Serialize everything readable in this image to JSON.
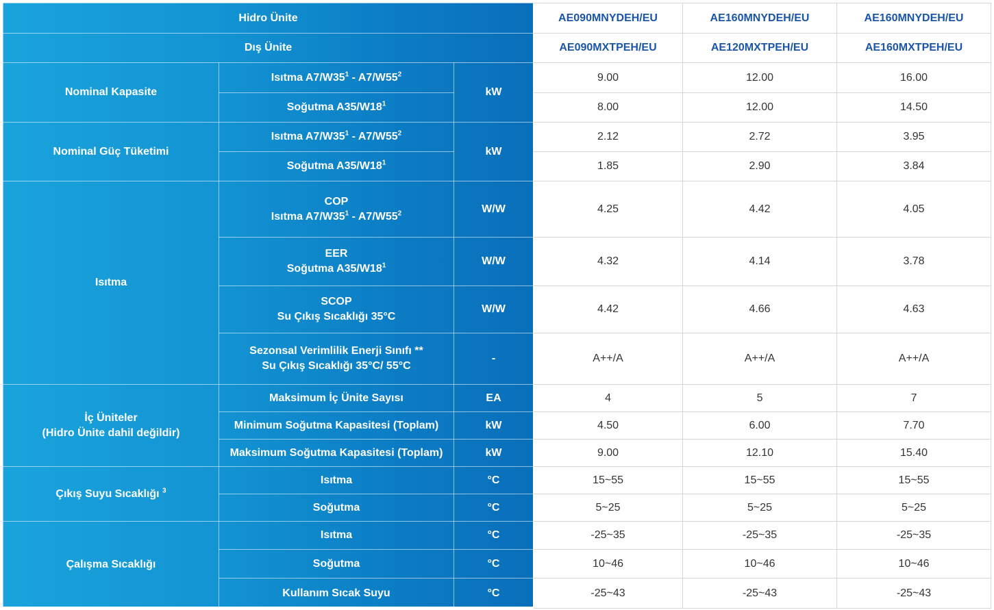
{
  "header": {
    "hydro_label": "Hidro Ünite",
    "outdoor_label": "Dış Ünite",
    "hydro_models": [
      "AE090MNYDEH/EU",
      "AE160MNYDEH/EU",
      "AE160MNYDEH/EU"
    ],
    "outdoor_models": [
      "AE090MXTPEH/EU",
      "AE120MXTPEH/EU",
      "AE160MXTPEH/EU"
    ]
  },
  "groups": {
    "nominal_capacity": "Nominal Kapasite",
    "nominal_power": "Nominal Güç Tüketimi",
    "heating": "Isıtma",
    "indoor_units": {
      "line1": "İç Üniteler",
      "line2": "(Hidro Ünite dahil değildir)"
    },
    "outlet_water": "Çıkış Suyu Sıcaklığı",
    "outlet_water_sup": "3",
    "operating_temp": "Çalışma Sıcaklığı"
  },
  "labels": {
    "heat_a": "Isıtma A7/W35",
    "heat_sup1": "1",
    "heat_b": " - A7/W55",
    "heat_sup2": "2",
    "cool_a": "Soğutma A35/W18",
    "cool_sup1": "1",
    "cop": "COP",
    "eer": "EER",
    "scop": "SCOP",
    "water_out_35": "Su Çıkış Sıcaklığı 35°C",
    "seasonal": "Sezonsal Verimlilik Enerji Sınıfı **",
    "water_out_35_55": "Su Çıkış Sıcaklığı 35°C/ 55°C",
    "max_indoor": "Maksimum İç Ünite Sayısı",
    "min_cool_cap": "Minimum Soğutma Kapasitesi (Toplam)",
    "max_cool_cap": "Maksimum Soğutma Kapasitesi (Toplam)",
    "heating": "Isıtma",
    "cooling": "Soğutma",
    "dhw": "Kullanım Sıcak Suyu"
  },
  "units": {
    "kw": "kW",
    "ww": "W/W",
    "dash": "-",
    "ea": "EA",
    "c": "°C"
  },
  "values": {
    "cap_heat": [
      "9.00",
      "12.00",
      "16.00"
    ],
    "cap_cool": [
      "8.00",
      "12.00",
      "14.50"
    ],
    "pow_heat": [
      "2.12",
      "2.72",
      "3.95"
    ],
    "pow_cool": [
      "1.85",
      "2.90",
      "3.84"
    ],
    "cop": [
      "4.25",
      "4.42",
      "4.05"
    ],
    "eer": [
      "4.32",
      "4.14",
      "3.78"
    ],
    "scop": [
      "4.42",
      "4.66",
      "4.63"
    ],
    "seasonal": [
      "A++/A",
      "A++/A",
      "A++/A"
    ],
    "max_indoor": [
      "4",
      "5",
      "7"
    ],
    "min_cool_cap": [
      "4.50",
      "6.00",
      "7.70"
    ],
    "max_cool_cap": [
      "9.00",
      "12.10",
      "15.40"
    ],
    "out_heat": [
      "15~55",
      "15~55",
      "15~55"
    ],
    "out_cool": [
      "5~25",
      "5~25",
      "5~25"
    ],
    "op_heat": [
      "-25~35",
      "-25~35",
      "-25~35"
    ],
    "op_cool": [
      "10~46",
      "10~46",
      "10~46"
    ],
    "op_dhw": [
      "-25~43",
      "-25~43",
      "-25~43"
    ]
  },
  "colors": {
    "panel_light": "#1aa3dc",
    "panel_dark": "#0a6fba",
    "header_text": "#1a55a8",
    "value_text": "#333333"
  }
}
